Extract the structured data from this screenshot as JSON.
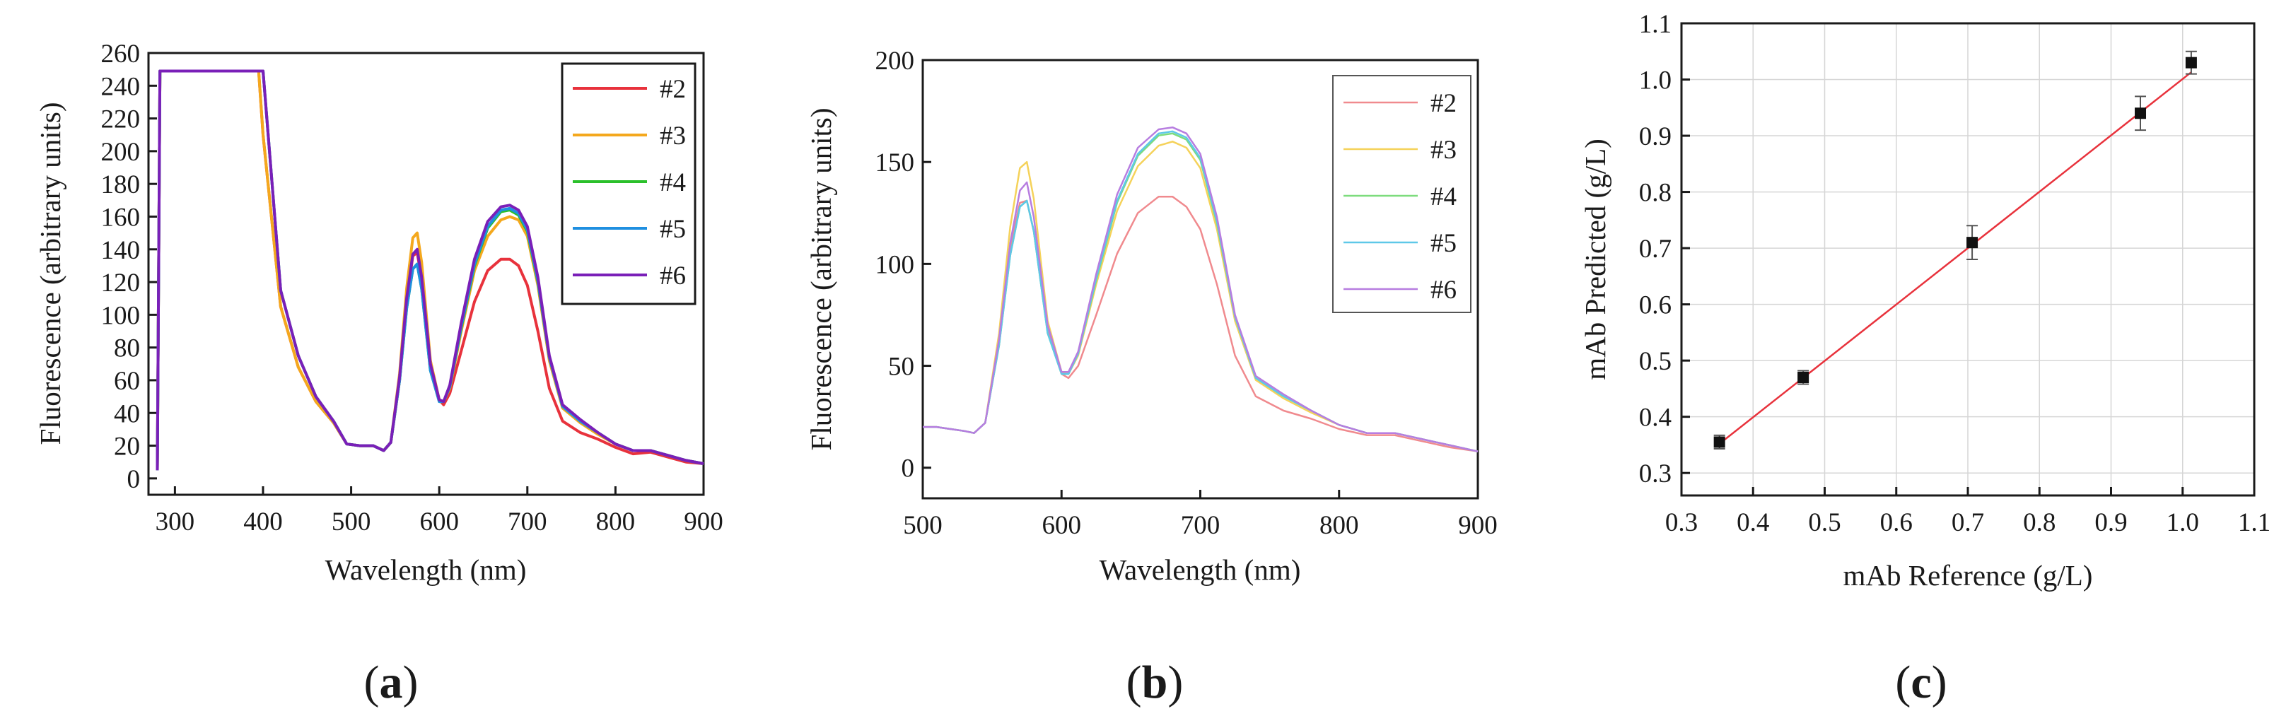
{
  "chart_data": [
    {
      "id": "a",
      "type": "line",
      "caption": "a",
      "xlabel": "Wavelength (nm)",
      "ylabel": "Fluorescence (arbitrary units)",
      "xlim": [
        270,
        900
      ],
      "ylim": [
        -10,
        260
      ],
      "xticks": [
        300,
        400,
        500,
        600,
        700,
        800,
        900
      ],
      "yticks": [
        0,
        20,
        40,
        60,
        80,
        100,
        120,
        140,
        160,
        180,
        200,
        220,
        240,
        260
      ],
      "legend": "top-right",
      "series": [
        {
          "name": "#2",
          "color": "#e8323c",
          "x": [
            280,
            283,
            300,
            350,
            395,
            400,
            420,
            440,
            460,
            480,
            495,
            510,
            525,
            537,
            545,
            555,
            563,
            570,
            575,
            580,
            590,
            600,
            605,
            612,
            625,
            640,
            655,
            670,
            680,
            690,
            700,
            712,
            725,
            740,
            760,
            780,
            800,
            820,
            840,
            860,
            880,
            900
          ],
          "y": [
            5,
            249,
            249,
            249,
            249,
            210,
            105,
            68,
            47,
            34,
            21,
            20,
            20,
            17,
            22,
            60,
            108,
            136,
            138,
            122,
            68,
            48,
            45,
            52,
            78,
            108,
            127,
            134,
            134,
            130,
            118,
            90,
            55,
            35,
            28,
            24,
            19,
            15,
            16,
            13,
            10,
            9
          ]
        },
        {
          "name": "#3",
          "color": "#f4a81d",
          "x": [
            280,
            283,
            300,
            350,
            395,
            400,
            420,
            440,
            460,
            480,
            495,
            510,
            525,
            537,
            545,
            555,
            563,
            570,
            575,
            580,
            590,
            600,
            605,
            612,
            625,
            640,
            655,
            670,
            680,
            690,
            700,
            712,
            725,
            740,
            760,
            780,
            800,
            820,
            840,
            860,
            880,
            900
          ],
          "y": [
            5,
            249,
            249,
            249,
            249,
            210,
            105,
            68,
            47,
            34,
            21,
            20,
            20,
            17,
            22,
            64,
            116,
            147,
            150,
            132,
            72,
            48,
            47,
            55,
            90,
            127,
            148,
            158,
            160,
            158,
            148,
            118,
            72,
            43,
            34,
            27,
            21,
            17,
            17,
            14,
            11,
            9
          ]
        },
        {
          "name": "#4",
          "color": "#2bc02b",
          "x": [
            280,
            283,
            300,
            350,
            395,
            400,
            420,
            440,
            460,
            480,
            495,
            510,
            525,
            537,
            545,
            555,
            563,
            570,
            575,
            580,
            590,
            600,
            605,
            612,
            625,
            640,
            655,
            670,
            680,
            690,
            700,
            712,
            725,
            740,
            760,
            780,
            800,
            820,
            840,
            860,
            880,
            900
          ],
          "y": [
            5,
            249,
            249,
            249,
            249,
            249,
            115,
            75,
            50,
            35,
            21,
            20,
            20,
            17,
            22,
            60,
            104,
            128,
            131,
            116,
            66,
            47,
            47,
            56,
            92,
            130,
            153,
            163,
            164,
            161,
            151,
            120,
            74,
            44,
            35,
            28,
            21,
            17,
            17,
            14,
            11,
            9
          ]
        },
        {
          "name": "#5",
          "color": "#1f8fe0",
          "x": [
            280,
            283,
            300,
            350,
            395,
            400,
            420,
            440,
            460,
            480,
            495,
            510,
            525,
            537,
            545,
            555,
            563,
            570,
            575,
            580,
            590,
            600,
            605,
            612,
            625,
            640,
            655,
            670,
            680,
            690,
            700,
            712,
            725,
            740,
            760,
            780,
            800,
            820,
            840,
            860,
            880,
            900
          ],
          "y": [
            5,
            249,
            249,
            249,
            249,
            249,
            115,
            75,
            50,
            35,
            21,
            20,
            20,
            17,
            22,
            60,
            104,
            128,
            131,
            116,
            66,
            47,
            47,
            56,
            93,
            131,
            154,
            164,
            165,
            162,
            152,
            121,
            74,
            44,
            35,
            28,
            21,
            17,
            17,
            14,
            11,
            9
          ]
        },
        {
          "name": "#6",
          "color": "#7a1fb8",
          "x": [
            280,
            283,
            300,
            350,
            395,
            400,
            420,
            440,
            460,
            480,
            495,
            510,
            525,
            537,
            545,
            555,
            563,
            570,
            575,
            580,
            590,
            600,
            605,
            612,
            625,
            640,
            655,
            670,
            680,
            690,
            700,
            712,
            725,
            740,
            760,
            780,
            800,
            820,
            840,
            860,
            880,
            900
          ],
          "y": [
            5,
            249,
            249,
            249,
            249,
            249,
            115,
            75,
            50,
            35,
            21,
            20,
            20,
            17,
            22,
            62,
            110,
            137,
            140,
            123,
            70,
            48,
            47,
            57,
            95,
            134,
            157,
            166,
            167,
            164,
            154,
            123,
            75,
            45,
            36,
            28,
            21,
            17,
            17,
            14,
            11,
            9
          ]
        }
      ]
    },
    {
      "id": "b",
      "type": "line",
      "caption": "b",
      "xlabel": "Wavelength (nm)",
      "ylabel": "Fluorescence (arbitrary units)",
      "xlim": [
        500,
        900
      ],
      "ylim": [
        -15,
        200
      ],
      "xticks": [
        500,
        600,
        700,
        800,
        900
      ],
      "yticks": [
        0,
        50,
        100,
        150,
        200
      ],
      "legend": "top-right",
      "series": [
        {
          "name": "#2",
          "color": "#f08a8e",
          "x": [
            500,
            510,
            520,
            530,
            537,
            545,
            555,
            563,
            570,
            575,
            580,
            590,
            600,
            605,
            612,
            625,
            640,
            655,
            670,
            680,
            690,
            700,
            712,
            725,
            740,
            760,
            780,
            800,
            820,
            840,
            860,
            880,
            900
          ],
          "y": [
            20,
            20,
            19,
            18,
            17,
            22,
            60,
            108,
            130,
            131,
            116,
            68,
            46,
            44,
            50,
            75,
            105,
            125,
            133,
            133,
            128,
            117,
            90,
            55,
            35,
            28,
            24,
            19,
            16,
            16,
            13,
            10,
            8
          ]
        },
        {
          "name": "#3",
          "color": "#f5d25a",
          "x": [
            500,
            510,
            520,
            530,
            537,
            545,
            555,
            563,
            570,
            575,
            580,
            590,
            600,
            605,
            612,
            625,
            640,
            655,
            670,
            680,
            690,
            700,
            712,
            725,
            740,
            760,
            780,
            800,
            820,
            840,
            860,
            880,
            900
          ],
          "y": [
            20,
            20,
            19,
            18,
            17,
            22,
            66,
            118,
            147,
            150,
            132,
            72,
            47,
            46,
            55,
            90,
            126,
            148,
            158,
            160,
            157,
            147,
            117,
            72,
            43,
            34,
            27,
            21,
            17,
            17,
            14,
            11,
            8
          ]
        },
        {
          "name": "#4",
          "color": "#7ddc7d",
          "x": [
            500,
            510,
            520,
            530,
            537,
            545,
            555,
            563,
            570,
            575,
            580,
            590,
            600,
            605,
            612,
            625,
            640,
            655,
            670,
            680,
            690,
            700,
            712,
            725,
            740,
            760,
            780,
            800,
            820,
            840,
            860,
            880,
            900
          ],
          "y": [
            20,
            20,
            19,
            18,
            17,
            22,
            60,
            104,
            128,
            131,
            116,
            66,
            46,
            46,
            56,
            92,
            130,
            153,
            163,
            164,
            161,
            151,
            120,
            74,
            44,
            35,
            28,
            21,
            17,
            17,
            14,
            11,
            8
          ]
        },
        {
          "name": "#5",
          "color": "#5ec8e8",
          "x": [
            500,
            510,
            520,
            530,
            537,
            545,
            555,
            563,
            570,
            575,
            580,
            590,
            600,
            605,
            612,
            625,
            640,
            655,
            670,
            680,
            690,
            700,
            712,
            725,
            740,
            760,
            780,
            800,
            820,
            840,
            860,
            880,
            900
          ],
          "y": [
            20,
            20,
            19,
            18,
            17,
            22,
            60,
            104,
            128,
            131,
            116,
            66,
            46,
            46,
            56,
            93,
            131,
            154,
            164,
            165,
            162,
            152,
            121,
            74,
            44,
            35,
            28,
            21,
            17,
            17,
            14,
            11,
            8
          ]
        },
        {
          "name": "#6",
          "color": "#b77de0",
          "x": [
            500,
            510,
            520,
            530,
            537,
            545,
            555,
            563,
            570,
            575,
            580,
            590,
            600,
            605,
            612,
            625,
            640,
            655,
            670,
            680,
            690,
            700,
            712,
            725,
            740,
            760,
            780,
            800,
            820,
            840,
            860,
            880,
            900
          ],
          "y": [
            20,
            20,
            19,
            18,
            17,
            22,
            63,
            110,
            136,
            140,
            123,
            70,
            47,
            47,
            57,
            95,
            134,
            157,
            166,
            167,
            164,
            154,
            123,
            75,
            45,
            36,
            28,
            21,
            17,
            17,
            14,
            11,
            8
          ]
        }
      ]
    },
    {
      "id": "c",
      "type": "scatter",
      "caption": "c",
      "xlabel": "mAb Reference (g/L)",
      "ylabel": "mAb Predicted (g/L)",
      "xlim": [
        0.3,
        1.1
      ],
      "ylim": [
        0.26,
        1.1
      ],
      "xticks": [
        0.3,
        0.4,
        0.5,
        0.6,
        0.7,
        0.8,
        0.9,
        1.0,
        1.1
      ],
      "xtick_labels": [
        "0.3",
        "0.4",
        "0.5",
        "0.6",
        "0.7",
        "0.8",
        "0.9",
        "1.0",
        "1.1"
      ],
      "yticks": [
        0.3,
        0.4,
        0.5,
        0.6,
        0.7,
        0.8,
        0.9,
        1.0,
        1.1
      ],
      "ytick_labels": [
        "0.3",
        "0.4",
        "0.5",
        "0.6",
        "0.7",
        "0.8",
        "0.9",
        "1.0",
        "1.1"
      ],
      "grid": true,
      "points": [
        {
          "x": 0.353,
          "y": 0.355,
          "err": 0.012
        },
        {
          "x": 0.47,
          "y": 0.47,
          "err": 0.012
        },
        {
          "x": 0.706,
          "y": 0.71,
          "err": 0.03
        },
        {
          "x": 0.941,
          "y": 0.94,
          "err": 0.03
        },
        {
          "x": 1.012,
          "y": 1.03,
          "err": 0.02
        }
      ],
      "fit_line": {
        "color": "#e8323c",
        "x": [
          0.353,
          1.012
        ],
        "y": [
          0.352,
          1.013
        ]
      },
      "marker_color": "#111111"
    }
  ]
}
